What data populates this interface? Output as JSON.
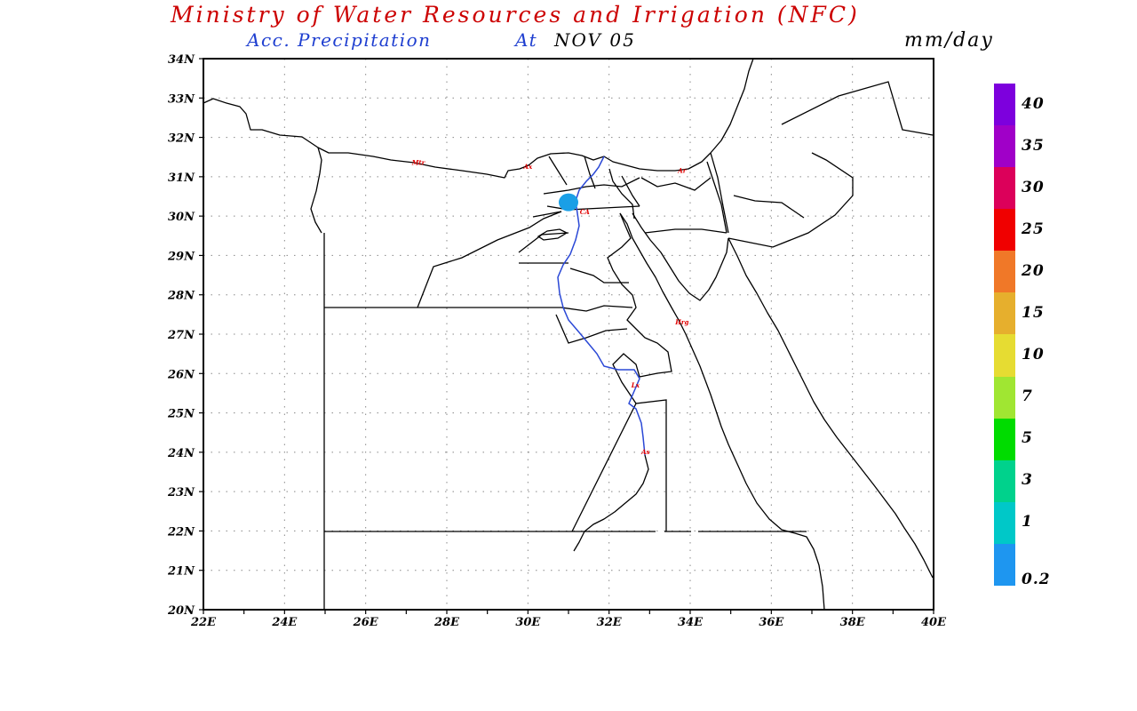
{
  "header": {
    "title": "Ministry of Water Resources and Irrigation (NFC)",
    "subtitle_prefix": "Acc. Precipitation",
    "subtitle_at": "At",
    "subtitle_date": "NOV 05",
    "units": "mm/day"
  },
  "colors": {
    "title": "#cc0000",
    "subtitle": "#1f3fd0",
    "river": "#2a48d6",
    "precip_blob": "#1a9fe6",
    "city_labels": "#e00000"
  },
  "axes": {
    "lat_labels": [
      "34N",
      "33N",
      "32N",
      "31N",
      "30N",
      "29N",
      "28N",
      "27N",
      "26N",
      "25N",
      "24N",
      "23N",
      "22N",
      "21N",
      "20N"
    ],
    "lon_labels": [
      "22E",
      "24E",
      "26E",
      "28E",
      "30E",
      "32E",
      "34E",
      "36E",
      "38E",
      "40E"
    ],
    "lat_range": [
      20,
      34
    ],
    "lon_range": [
      22,
      40
    ],
    "grid": "dotted"
  },
  "city_markers": [
    {
      "label": "Mtr",
      "lon": 27.3,
      "lat": 31.3
    },
    {
      "label": "Ax",
      "lon": 30.0,
      "lat": 31.2
    },
    {
      "label": "Ar",
      "lon": 33.8,
      "lat": 31.1
    },
    {
      "label": "CA",
      "lon": 31.4,
      "lat": 30.05
    },
    {
      "label": "Hrg",
      "lon": 33.8,
      "lat": 27.25
    },
    {
      "label": "Lx",
      "lon": 32.65,
      "lat": 25.65
    },
    {
      "label": "As",
      "lon": 32.9,
      "lat": 23.95
    }
  ],
  "precipitation_areas": [
    {
      "lon": 31.0,
      "lat": 30.35,
      "class": "0.2-1"
    }
  ],
  "colorbar": {
    "labels": [
      "40",
      "35",
      "30",
      "25",
      "20",
      "15",
      "10",
      "7",
      "5",
      "3",
      "1",
      "0.2"
    ],
    "colors": [
      "#7d00dd",
      "#a000c8",
      "#dc005a",
      "#f00000",
      "#f07828",
      "#e6af2d",
      "#e6dc32",
      "#a0e632",
      "#00dc00",
      "#00d28c",
      "#00c8c8",
      "#1e96f0"
    ]
  }
}
